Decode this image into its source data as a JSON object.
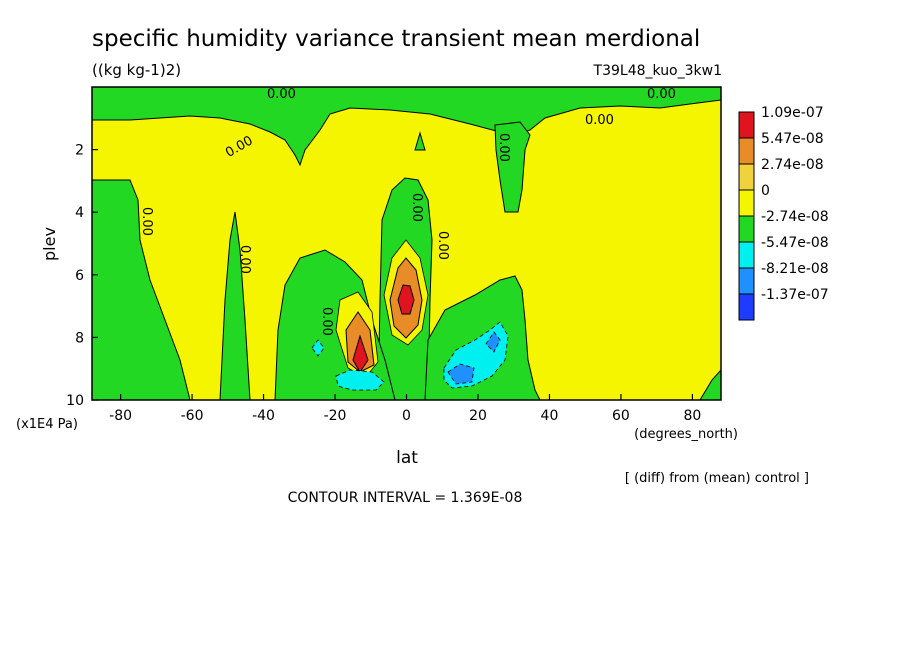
{
  "chart_data": {
    "type": "heatmap",
    "title": "specific humidity variance transient mean merdional",
    "units": "((kg kg-1)2)",
    "run_label": "T39L48_kuo_3kw1",
    "xlabel": "lat",
    "x_units": "(degrees_north)",
    "ylabel": "plev",
    "y_units": "(x1E4 Pa)",
    "xlim": [
      -88,
      88
    ],
    "ylim": [
      10,
      0
    ],
    "x_ticks": [
      "-80",
      "-60",
      "-40",
      "-20",
      "0",
      "20",
      "40",
      "60",
      "80"
    ],
    "y_ticks": [
      "2",
      "4",
      "6",
      "8",
      "10"
    ],
    "contour_interval": "CONTOUR INTERVAL = 1.369E-08",
    "diff_note": "[ (diff) from (mean) control ]",
    "contour_labels": [
      "0.00",
      "0.00",
      "0.00",
      "0.00",
      "0.00",
      "0.00",
      "0.00",
      "0.00",
      "0.00",
      "0.00"
    ],
    "legend": [
      {
        "label": "1.09e-07",
        "color": "#e0141e"
      },
      {
        "label": "5.47e-08",
        "color": "#e88c28"
      },
      {
        "label": "2.74e-08",
        "color": "#f0d23c"
      },
      {
        "label": "0",
        "color": "#f5f500"
      },
      {
        "label": "-2.74e-08",
        "color": "#22d822"
      },
      {
        "label": "-5.47e-08",
        "color": "#00f0f0"
      },
      {
        "label": "-8.21e-08",
        "color": "#1e90ff"
      },
      {
        "label": "-1.37e-07",
        "color": "#1e3cff"
      }
    ]
  }
}
